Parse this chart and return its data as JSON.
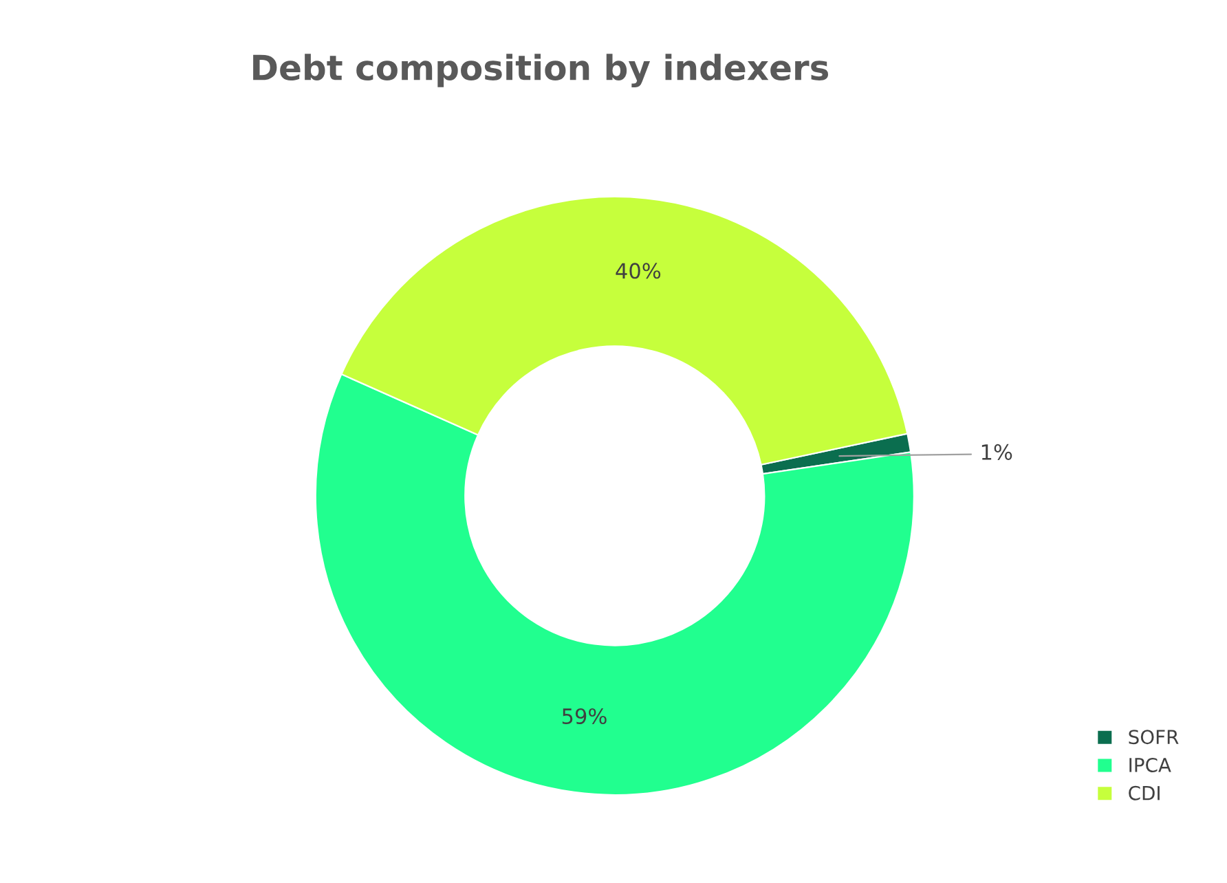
{
  "chart_data": {
    "type": "donut",
    "title": "Debt composition by indexers",
    "categories": [
      "SOFR",
      "IPCA",
      "CDI"
    ],
    "values": [
      1,
      59,
      40
    ],
    "colors": [
      "#0b6e4f",
      "#21ff8f",
      "#c6ff3c"
    ],
    "value_labels": [
      "1%",
      "59%",
      "40%"
    ],
    "legend": "bottom right"
  }
}
